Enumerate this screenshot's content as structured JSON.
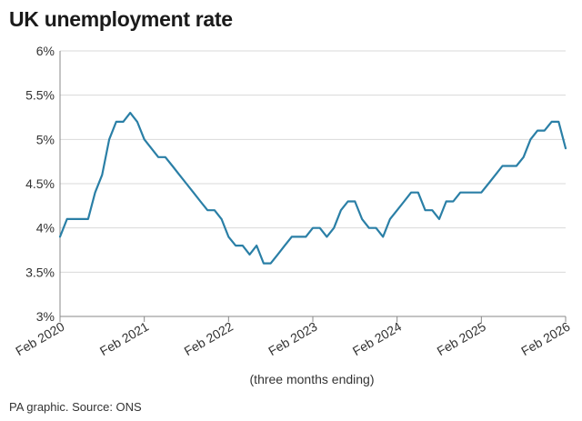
{
  "chart_data": {
    "type": "line",
    "title": "UK unemployment rate",
    "xlabel": "(three months ending)",
    "ylabel": "",
    "source": "PA graphic. Source: ONS",
    "ylim": [
      3,
      6
    ],
    "yticks": [
      3,
      3.5,
      4,
      4.5,
      5,
      5.5,
      6
    ],
    "ytick_labels": [
      "3%",
      "3.5%",
      "4%",
      "4.5%",
      "5%",
      "5.5%",
      "6%"
    ],
    "xlim": [
      "2020-02",
      "2026-02"
    ],
    "xticks": [
      "2020-02",
      "2021-02",
      "2022-02",
      "2023-02",
      "2024-02",
      "2025-02",
      "2026-02"
    ],
    "xtick_labels": [
      "Feb 2020",
      "Feb 2021",
      "Feb 2022",
      "Feb 2023",
      "Feb 2024",
      "Feb 2025",
      "Feb 2026"
    ],
    "grid": true,
    "line_color": "#2a7fa6",
    "series": [
      {
        "x": [
          "2020-02",
          "2020-03",
          "2020-04",
          "2020-05",
          "2020-06",
          "2020-07",
          "2020-08",
          "2020-09",
          "2020-10",
          "2020-11",
          "2020-12",
          "2021-01",
          "2021-02",
          "2021-03",
          "2021-04",
          "2021-05",
          "2021-06",
          "2021-07",
          "2021-08",
          "2021-09",
          "2021-10",
          "2021-11",
          "2021-12",
          "2022-01",
          "2022-02",
          "2022-03",
          "2022-04",
          "2022-05",
          "2022-06",
          "2022-07",
          "2022-08",
          "2022-09",
          "2022-10",
          "2022-11",
          "2022-12",
          "2023-01",
          "2023-02",
          "2023-03",
          "2023-04",
          "2023-05",
          "2023-06",
          "2023-07",
          "2023-08",
          "2023-09",
          "2023-10",
          "2023-11",
          "2023-12",
          "2024-01",
          "2024-02",
          "2024-03",
          "2024-04",
          "2024-05",
          "2024-06",
          "2024-07",
          "2024-08",
          "2024-09",
          "2024-10",
          "2024-11",
          "2024-12",
          "2025-01",
          "2025-02",
          "2025-03",
          "2025-04",
          "2025-05",
          "2025-06",
          "2025-07",
          "2025-08",
          "2025-09",
          "2025-10",
          "2025-11",
          "2025-12",
          "2026-01",
          "2026-02"
        ],
        "values": [
          3.9,
          4.1,
          4.1,
          4.1,
          4.1,
          4.4,
          4.6,
          5.0,
          5.2,
          5.2,
          5.3,
          5.2,
          5.0,
          4.9,
          4.8,
          4.8,
          4.7,
          4.6,
          4.5,
          4.4,
          4.3,
          4.2,
          4.2,
          4.1,
          3.9,
          3.8,
          3.8,
          3.7,
          3.8,
          3.6,
          3.6,
          3.7,
          3.8,
          3.9,
          3.9,
          3.9,
          4.0,
          4.0,
          3.9,
          4.0,
          4.2,
          4.3,
          4.3,
          4.1,
          4.0,
          4.0,
          3.9,
          4.1,
          4.2,
          4.3,
          4.4,
          4.4,
          4.2,
          4.2,
          4.1,
          4.3,
          4.3,
          4.4,
          4.4,
          4.4,
          4.4,
          4.5,
          4.6,
          4.7,
          4.7,
          4.7,
          4.8,
          5.0,
          5.1,
          5.1,
          5.2,
          5.2,
          4.9
        ]
      }
    ]
  }
}
